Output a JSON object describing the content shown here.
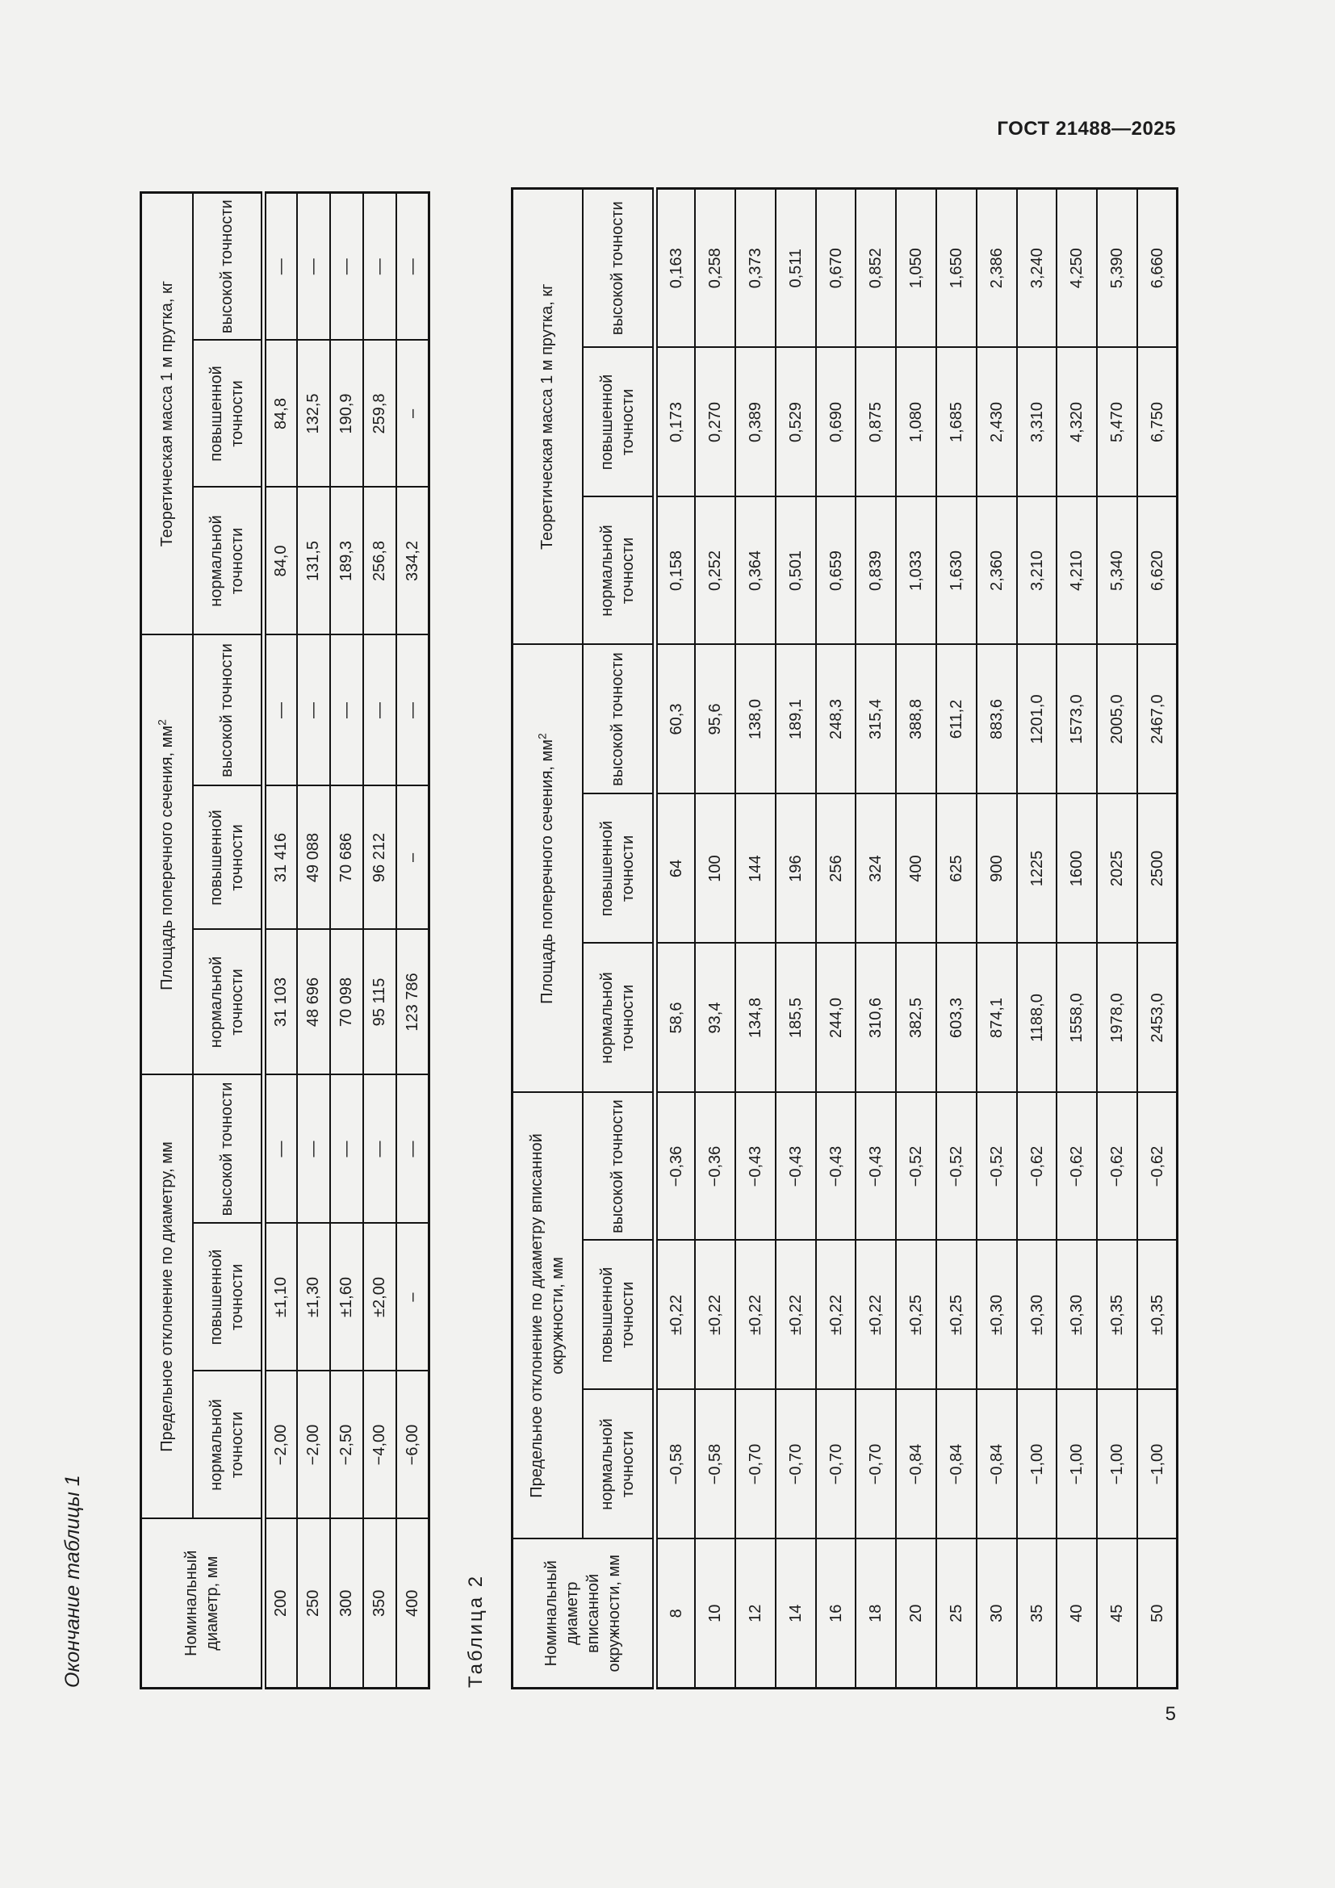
{
  "page": {
    "header": "ГОСТ 21488—2025",
    "page_number": "5"
  },
  "table1": {
    "caption": "Окончание таблицы 1",
    "headers": {
      "diameter": "Номинальный диаметр, мм",
      "deviation": "Предельное отклонение по диаметру, мм",
      "area": "Площадь поперечного сечения, мм",
      "area_sup": "2",
      "mass": "Теоретическая масса 1 м прутка, кг",
      "subs": [
        "нормальной точности",
        "повышенной точности",
        "высокой точности"
      ]
    },
    "rows": [
      [
        "200",
        "−2,00",
        "±1,10",
        "—",
        "31 103",
        "31 416",
        "—",
        "84,0",
        "84,8",
        "—"
      ],
      [
        "250",
        "−2,00",
        "±1,30",
        "—",
        "48 696",
        "49 088",
        "—",
        "131,5",
        "132,5",
        "—"
      ],
      [
        "300",
        "−2,50",
        "±1,60",
        "—",
        "70 098",
        "70 686",
        "—",
        "189,3",
        "190,9",
        "—"
      ],
      [
        "350",
        "−4,00",
        "±2,00",
        "—",
        "95 115",
        "96 212",
        "—",
        "256,8",
        "259,8",
        "—"
      ],
      [
        "400",
        "−6,00",
        "–",
        "—",
        "123 786",
        "–",
        "—",
        "334,2",
        "–",
        "—"
      ]
    ]
  },
  "table2": {
    "caption": "Таблица 2",
    "headers": {
      "diameter": "Номинальный диаметр вписанной окружности, мм",
      "deviation": "Предельное отклонение по диаметру вписанной окружности, мм",
      "area": "Площадь поперечного сечения, мм",
      "area_sup": "2",
      "mass": "Теоретическая масса 1 м прутка, кг",
      "subs": [
        "нормальной точности",
        "повышенной точности",
        "высокой точности"
      ]
    },
    "rows": [
      [
        "8",
        "−0,58",
        "±0,22",
        "−0,36",
        "58,6",
        "64",
        "60,3",
        "0,158",
        "0,173",
        "0,163"
      ],
      [
        "10",
        "−0,58",
        "±0,22",
        "−0,36",
        "93,4",
        "100",
        "95,6",
        "0,252",
        "0,270",
        "0,258"
      ],
      [
        "12",
        "−0,70",
        "±0,22",
        "−0,43",
        "134,8",
        "144",
        "138,0",
        "0,364",
        "0,389",
        "0,373"
      ],
      [
        "14",
        "−0,70",
        "±0,22",
        "−0,43",
        "185,5",
        "196",
        "189,1",
        "0,501",
        "0,529",
        "0,511"
      ],
      [
        "16",
        "−0,70",
        "±0,22",
        "−0,43",
        "244,0",
        "256",
        "248,3",
        "0,659",
        "0,690",
        "0,670"
      ],
      [
        "18",
        "−0,70",
        "±0,22",
        "−0,43",
        "310,6",
        "324",
        "315,4",
        "0,839",
        "0,875",
        "0,852"
      ],
      [
        "20",
        "−0,84",
        "±0,25",
        "−0,52",
        "382,5",
        "400",
        "388,8",
        "1,033",
        "1,080",
        "1,050"
      ],
      [
        "25",
        "−0,84",
        "±0,25",
        "−0,52",
        "603,3",
        "625",
        "611,2",
        "1,630",
        "1,685",
        "1,650"
      ],
      [
        "30",
        "−0,84",
        "±0,30",
        "−0,52",
        "874,1",
        "900",
        "883,6",
        "2,360",
        "2,430",
        "2,386"
      ],
      [
        "35",
        "−1,00",
        "±0,30",
        "−0,62",
        "1188,0",
        "1225",
        "1201,0",
        "3,210",
        "3,310",
        "3,240"
      ],
      [
        "40",
        "−1,00",
        "±0,30",
        "−0,62",
        "1558,0",
        "1600",
        "1573,0",
        "4,210",
        "4,320",
        "4,250"
      ],
      [
        "45",
        "−1,00",
        "±0,35",
        "−0,62",
        "1978,0",
        "2025",
        "2005,0",
        "5,340",
        "5,470",
        "5,390"
      ],
      [
        "50",
        "−1,00",
        "±0,35",
        "−0,62",
        "2453,0",
        "2500",
        "2467,0",
        "6,620",
        "6,750",
        "6,660"
      ]
    ]
  }
}
